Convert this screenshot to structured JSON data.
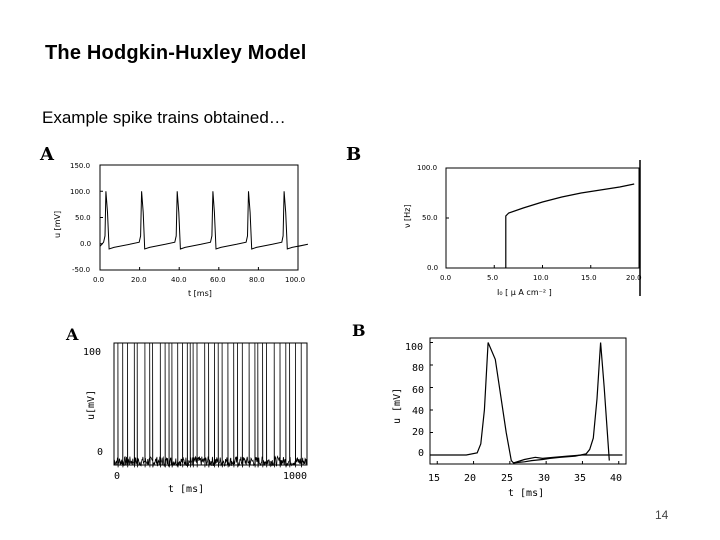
{
  "slide": {
    "title": "The Hodgkin-Huxley Model",
    "subtitle": "Example spike trains obtained…",
    "page_number": "14"
  },
  "chart_data": [
    {
      "type": "line",
      "panel_label": "A",
      "xlabel": "t [ms]",
      "ylabel": "u [mV]",
      "x_ticks": [
        "0.0",
        "20.0",
        "40.0",
        "60.0",
        "80.0",
        "100.0"
      ],
      "y_ticks": [
        "-50.0",
        "0.0",
        "50.0",
        "100.0",
        "150.0"
      ],
      "xlim": [
        0,
        100
      ],
      "ylim": [
        -50,
        150
      ],
      "series": [
        {
          "spike_times": [
            3,
            21,
            39,
            57,
            75,
            93
          ],
          "peak": 100,
          "rest": -5
        }
      ]
    },
    {
      "type": "line",
      "panel_label": "B",
      "xlabel": "I₀  [ μ A cm⁻² ]",
      "ylabel": "ν [Hz]",
      "x_ticks": [
        "0.0",
        "5.0",
        "10.0",
        "15.0",
        "20.0"
      ],
      "y_ticks": [
        "0.0",
        "50.0",
        "100.0"
      ],
      "xlim": [
        0,
        20
      ],
      "ylim": [
        0,
        100
      ],
      "series": [
        {
          "x": [
            6.2,
            6.2,
            6.5,
            8,
            10,
            12,
            14,
            16,
            18,
            19.5
          ],
          "y": [
            0,
            52,
            55,
            60,
            66,
            71,
            75,
            78,
            81,
            84
          ]
        }
      ]
    },
    {
      "type": "line",
      "panel_label": "A",
      "xlabel": "t  [ms]",
      "ylabel": "u[mV]",
      "x_ticks": [
        "0",
        "1000"
      ],
      "y_ticks": [
        "0",
        "100"
      ],
      "xlim": [
        0,
        1000
      ],
      "ylim": [
        0,
        100
      ],
      "series": [
        {
          "spike_times": [
            20,
            45,
            70,
            105,
            120,
            160,
            185,
            200,
            240,
            265,
            285,
            300,
            330,
            355,
            380,
            395,
            410,
            430,
            470,
            490,
            520,
            540,
            560,
            590,
            620,
            640,
            665,
            700,
            730,
            745,
            770,
            790,
            830,
            860,
            890,
            910,
            940,
            970
          ],
          "peak": 100,
          "rest": 3
        }
      ]
    },
    {
      "type": "line",
      "panel_label": "B",
      "xlabel": "t [ms]",
      "ylabel": "u [mV]",
      "x_ticks": [
        "15",
        "20",
        "25",
        "30",
        "35",
        "40"
      ],
      "y_ticks": [
        "0",
        "20",
        "40",
        "60",
        "80",
        "100"
      ],
      "xlim": [
        14,
        41
      ],
      "ylim": [
        -8,
        104
      ],
      "series": [
        {
          "x": [
            14,
            19,
            20.5,
            21,
            21.5,
            22,
            23,
            24.5,
            25.2,
            25.5,
            27,
            28,
            29.5,
            30.5,
            32,
            34,
            35.5,
            36,
            36.5,
            37,
            37.5,
            38,
            38.7
          ],
          "y": [
            0,
            0,
            2,
            10,
            40,
            100,
            85,
            20,
            -5,
            -7,
            -6,
            -5,
            -4,
            -3,
            -2,
            -1,
            1,
            5,
            15,
            50,
            100,
            60,
            -5
          ]
        },
        {
          "x": [
            25.5,
            27,
            28.5,
            29.5,
            31,
            33,
            35,
            37,
            39,
            40.5
          ],
          "y": [
            -7,
            -4,
            -2,
            -3,
            -2,
            -1,
            0,
            0,
            0,
            0
          ]
        }
      ]
    }
  ]
}
